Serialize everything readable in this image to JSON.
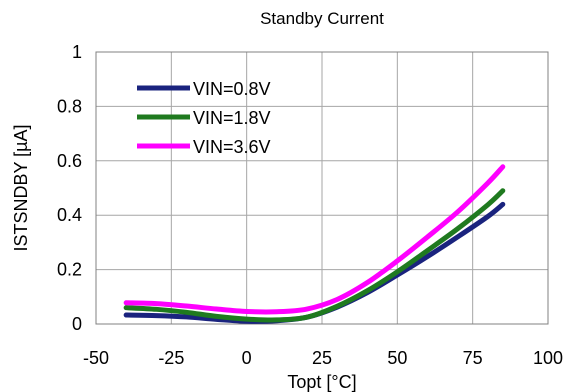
{
  "chart_data": {
    "type": "line",
    "title": "Standby Current",
    "xlabel": "Topt [°C]",
    "ylabel": "ISTSNDBY [µA]",
    "xlim": [
      -50,
      100
    ],
    "ylim": [
      0,
      1
    ],
    "xticks": [
      -50,
      -25,
      0,
      25,
      50,
      75,
      100
    ],
    "yticks": [
      0,
      0.2,
      0.4,
      0.6,
      0.8,
      1
    ],
    "ytick_labels": [
      "0",
      "0.2",
      "0.4",
      "0.6",
      "0.8",
      "1"
    ],
    "grid": true,
    "legend_position": "top-left",
    "x": [
      -40,
      -30,
      -20,
      -10,
      0,
      10,
      20,
      30,
      40,
      50,
      60,
      70,
      80,
      85
    ],
    "series": [
      {
        "name": "VIN=0.8V",
        "color": "#1a237e",
        "values": [
          0.033,
          0.031,
          0.026,
          0.017,
          0.01,
          0.012,
          0.025,
          0.062,
          0.115,
          0.18,
          0.248,
          0.32,
          0.395,
          0.44
        ]
      },
      {
        "name": "VIN=1.8V",
        "color": "#1f7a1f",
        "values": [
          0.06,
          0.054,
          0.043,
          0.028,
          0.018,
          0.015,
          0.025,
          0.065,
          0.122,
          0.192,
          0.27,
          0.35,
          0.438,
          0.49
        ]
      },
      {
        "name": "VIN=3.6V",
        "color": "#ff00ff",
        "values": [
          0.078,
          0.075,
          0.066,
          0.055,
          0.046,
          0.045,
          0.055,
          0.09,
          0.152,
          0.232,
          0.32,
          0.412,
          0.518,
          0.578
        ]
      }
    ]
  }
}
